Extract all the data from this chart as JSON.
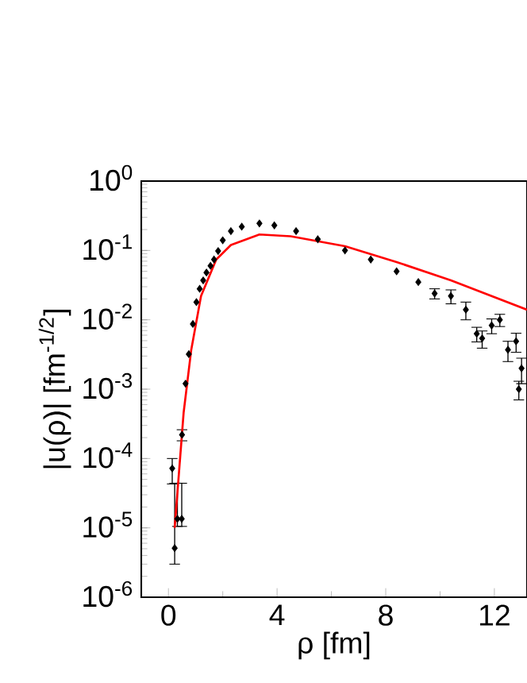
{
  "chart_data": {
    "type": "scatter",
    "xlabel": "ρ [fm]",
    "ylabel": "|u(ρ)| [fm$^{-1/2}$]",
    "log": "y",
    "grid": false,
    "xlim": [
      -1,
      13.2
    ],
    "xticks": [
      0,
      4,
      8,
      12
    ],
    "ylim": [
      1e-06,
      1
    ],
    "yticks": [
      {
        "value": 1e-06,
        "label": "10$^{-6}$"
      },
      {
        "value": 1e-05,
        "label": "10$^{-5}$"
      },
      {
        "value": 0.0001,
        "label": "10$^{-4}$"
      },
      {
        "value": 0.001,
        "label": "10$^{-3}$"
      },
      {
        "value": 0.01,
        "label": "10$^{-2}$"
      },
      {
        "value": 0.1,
        "label": "10$^{-1}$"
      },
      {
        "value": 1,
        "label": "10$^{0}$"
      }
    ],
    "series": [
      {
        "type": "scatter",
        "color": "#000000",
        "marker": "diamond",
        "x": [
          0.14,
          0.23,
          0.33,
          0.49,
          0.5,
          0.63,
          0.75,
          0.9,
          1.03,
          1.15,
          1.28,
          1.4,
          1.55,
          1.68,
          1.83,
          2.0,
          2.3,
          2.7,
          3.35,
          3.9,
          4.7,
          5.5,
          6.5,
          7.45,
          8.4,
          9.2,
          9.8,
          10.4,
          10.95,
          11.35,
          11.55,
          11.9,
          12.2,
          12.5,
          12.8,
          12.9,
          13.0
        ],
        "values": [
          7.2e-05,
          5.1e-06,
          1.35e-05,
          1.35e-05,
          0.00022,
          0.0012,
          0.0032,
          0.0087,
          0.018,
          0.028,
          0.037,
          0.048,
          0.06,
          0.074,
          0.098,
          0.14,
          0.19,
          0.22,
          0.245,
          0.23,
          0.19,
          0.145,
          0.1,
          0.074,
          0.05,
          0.035,
          0.024,
          0.022,
          0.014,
          0.0063,
          0.0054,
          0.0083,
          0.01,
          0.0037,
          0.0049,
          0.001,
          0.002
        ],
        "errors": [
          [
            4.3e-05,
            0.0001
          ],
          [
            3e-06,
            4.4e-05
          ],
          [
            1.05e-05,
            4.4e-05
          ],
          [
            1.05e-05,
            4.4e-05
          ],
          [
            0.00018,
            0.00026
          ],
          null,
          null,
          null,
          null,
          null,
          null,
          null,
          null,
          null,
          null,
          null,
          null,
          null,
          null,
          null,
          null,
          null,
          null,
          null,
          null,
          null,
          0.004,
          0.005,
          0.004,
          0.0015,
          0.0015,
          0.002,
          0.002,
          0.0012,
          0.0015,
          0.0003,
          0.0008
        ]
      },
      {
        "type": "line",
        "color": "#ff0000",
        "marker": "none",
        "x": [
          0.23,
          0.56,
          0.84,
          1.2,
          1.76,
          2.3,
          3.35,
          4.5,
          6.5,
          8.4,
          10.4,
          13.2
        ],
        "values": [
          1e-05,
          0.00046,
          0.0037,
          0.022,
          0.074,
          0.12,
          0.17,
          0.16,
          0.115,
          0.068,
          0.037,
          0.014
        ]
      }
    ]
  }
}
